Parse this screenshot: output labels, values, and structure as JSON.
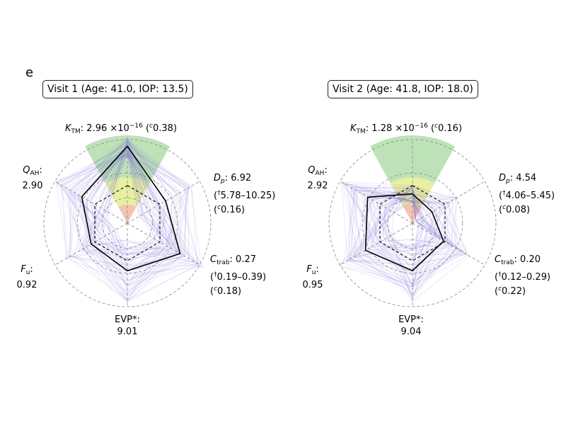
{
  "panel_letter": "e",
  "chart_data": [
    {
      "type": "radar",
      "title": "Visit 1 (Age: 41.0, IOP: 13.5)",
      "axes": [
        "K_TM",
        "D_p",
        "C_trab",
        "EVP*",
        "F_u",
        "Q_AH"
      ],
      "labels": {
        "ktm": {
          "name": "K",
          "sub": "TM",
          "value": ": 2.96 ×10",
          "exp": "−16",
          "ci": " (",
          "ci_sup": "c",
          "ci_val": "0.38)"
        },
        "dp": {
          "name": "D",
          "sub": "p",
          "value": ": 6.92",
          "range_sup": "†",
          "range": "5.78–10.25)",
          "ci_sup": "c",
          "ci_val": "0.16)"
        },
        "ctrab": {
          "name": "C",
          "sub": "trab",
          "value": ": 0.27",
          "range_sup": "†",
          "range": "0.19–0.39)",
          "ci_sup": "c",
          "ci_val": "0.18)"
        },
        "evp": {
          "name": "EVP*:",
          "value": "9.01"
        },
        "fu": {
          "name": "F",
          "sub": "u",
          "value_sep": ":",
          "value": "0.92"
        },
        "qah": {
          "name": "Q",
          "sub": "AH",
          "value_sep": ":",
          "value": "2.90"
        }
      },
      "series": [
        {
          "role": "estimate",
          "style": "solid",
          "color": "#000000",
          "values": [
            0.92,
            0.53,
            0.73,
            0.57,
            0.5,
            0.63
          ]
        },
        {
          "role": "reference",
          "style": "dashed",
          "color": "#000000",
          "values": [
            0.45,
            0.45,
            0.45,
            0.45,
            0.45,
            0.45
          ]
        }
      ],
      "ensemble_color": "#7b6fd6",
      "target_sectors": [
        {
          "color": "#a8d8a0",
          "radius": 1.05,
          "start_deg": -29,
          "end_deg": 29
        },
        {
          "color": "#f4f39a",
          "radius": 0.55,
          "start_deg": -29,
          "end_deg": 29
        },
        {
          "color": "#f6b4b4",
          "radius": 0.22,
          "start_deg": -29,
          "end_deg": 29
        }
      ],
      "rlim": [
        0,
        1
      ],
      "grid": true
    },
    {
      "type": "radar",
      "title": "Visit 2 (Age: 41.8, IOP: 18.0)",
      "axes": [
        "K_TM",
        "D_p",
        "C_trab",
        "EVP*",
        "F_u",
        "Q_AH"
      ],
      "labels": {
        "ktm": {
          "name": "K",
          "sub": "TM",
          "value": ": 1.28 ×10",
          "exp": "−16",
          "ci": " (",
          "ci_sup": "c",
          "ci_val": "0.16)"
        },
        "dp": {
          "name": "D",
          "sub": "p",
          "value": ": 4.54",
          "range_sup": "†",
          "range": "4.06–5.45)",
          "ci_sup": "c",
          "ci_val": "0.08)"
        },
        "ctrab": {
          "name": "C",
          "sub": "trab",
          "value": ": 0.20",
          "range_sup": "†",
          "range": "0.12–0.29)",
          "ci_sup": "c",
          "ci_val": "0.22)"
        },
        "evp": {
          "name": "EVP*:",
          "value": "9.04"
        },
        "fu": {
          "name": "F",
          "sub": "u",
          "value_sep": ":",
          "value": "0.95"
        },
        "qah": {
          "name": "Q",
          "sub": "AH",
          "value_sep": ":",
          "value": "2.92"
        }
      },
      "series": [
        {
          "role": "estimate",
          "style": "solid",
          "color": "#000000",
          "values": [
            0.35,
            0.27,
            0.43,
            0.57,
            0.65,
            0.62
          ]
        },
        {
          "role": "reference",
          "style": "dashed",
          "color": "#000000",
          "values": [
            0.45,
            0.45,
            0.45,
            0.45,
            0.45,
            0.45
          ]
        }
      ],
      "ensemble_color": "#7b6fd6",
      "target_sectors": [
        {
          "color": "#a8d8a0",
          "radius": 1.05,
          "start_deg": -29,
          "end_deg": 29
        },
        {
          "color": "#f4f39a",
          "radius": 0.55,
          "start_deg": -29,
          "end_deg": 29
        },
        {
          "color": "#f6b4b4",
          "radius": 0.22,
          "start_deg": -29,
          "end_deg": 29
        }
      ],
      "rlim": [
        0,
        1
      ],
      "grid": true
    }
  ]
}
